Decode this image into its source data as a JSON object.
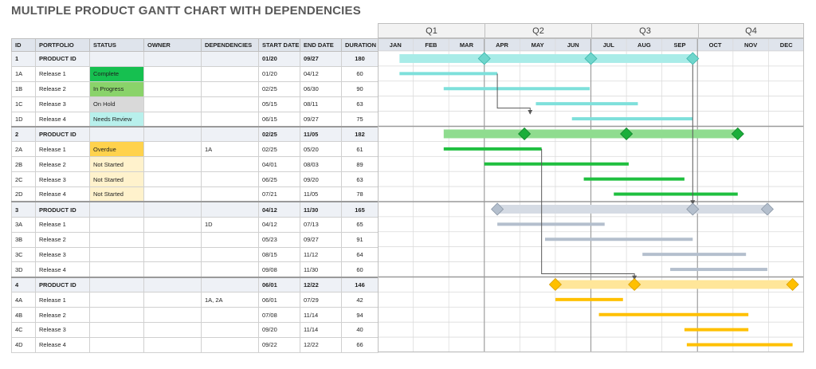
{
  "title": "MULTIPLE PRODUCT GANTT CHART WITH DEPENDENCIES",
  "quarters": [
    "Q1",
    "Q2",
    "Q3",
    "Q4"
  ],
  "months": [
    "JAN",
    "FEB",
    "MAR",
    "APR",
    "MAY",
    "JUN",
    "JUL",
    "AUG",
    "SEP",
    "OCT",
    "NOV",
    "DEC"
  ],
  "columns": {
    "id": "ID",
    "portfolio": "PORTFOLIO",
    "status": "STATUS",
    "owner": "OWNER",
    "dependencies": "DEPENDENCIES",
    "start": "START DATE",
    "end": "END DATE",
    "duration": "DURATION"
  },
  "rows": [
    {
      "id": "1",
      "portfolio": "PRODUCT ID",
      "status": "",
      "status_class": "",
      "owner": "",
      "dependencies": "",
      "start": "01/20",
      "end": "09/27",
      "duration": "180",
      "parent": true,
      "group": 0,
      "bar_start": [
        1,
        20
      ],
      "bar_end": [
        9,
        27
      ],
      "milestones": [
        [
          4,
          1
        ],
        [
          7,
          1
        ],
        [
          9,
          27
        ]
      ]
    },
    {
      "id": "1A",
      "portfolio": "Release 1",
      "status": "Complete",
      "status_class": "st-complete",
      "owner": "",
      "dependencies": "",
      "start": "01/20",
      "end": "04/12",
      "duration": "60",
      "parent": false,
      "group": 0,
      "bar_start": [
        1,
        20
      ],
      "bar_end": [
        4,
        12
      ]
    },
    {
      "id": "1B",
      "portfolio": "Release 2",
      "status": "In Progress",
      "status_class": "st-progress",
      "owner": "",
      "dependencies": "",
      "start": "02/25",
      "end": "06/30",
      "duration": "90",
      "parent": false,
      "group": 0,
      "bar_start": [
        2,
        25
      ],
      "bar_end": [
        6,
        30
      ]
    },
    {
      "id": "1C",
      "portfolio": "Release 3",
      "status": "On Hold",
      "status_class": "st-hold",
      "owner": "",
      "dependencies": "",
      "start": "05/15",
      "end": "08/11",
      "duration": "63",
      "parent": false,
      "group": 0,
      "bar_start": [
        5,
        15
      ],
      "bar_end": [
        8,
        11
      ]
    },
    {
      "id": "1D",
      "portfolio": "Release 4",
      "status": "Needs Review",
      "status_class": "st-review",
      "owner": "",
      "dependencies": "",
      "start": "06/15",
      "end": "09/27",
      "duration": "75",
      "parent": false,
      "group": 0,
      "bar_start": [
        6,
        15
      ],
      "bar_end": [
        9,
        27
      ]
    },
    {
      "id": "2",
      "portfolio": "PRODUCT ID",
      "status": "",
      "status_class": "",
      "owner": "",
      "dependencies": "",
      "start": "02/25",
      "end": "11/05",
      "duration": "182",
      "parent": true,
      "group": 1,
      "bar_start": [
        2,
        25
      ],
      "bar_end": [
        11,
        5
      ],
      "milestones": [
        [
          5,
          5
        ],
        [
          8,
          1
        ],
        [
          11,
          5
        ]
      ]
    },
    {
      "id": "2A",
      "portfolio": "Release 1",
      "status": "Overdue",
      "status_class": "st-overdue",
      "owner": "",
      "dependencies": "1A",
      "start": "02/25",
      "end": "05/20",
      "duration": "61",
      "parent": false,
      "group": 1,
      "bar_start": [
        2,
        25
      ],
      "bar_end": [
        5,
        20
      ]
    },
    {
      "id": "2B",
      "portfolio": "Release 2",
      "status": "Not Started",
      "status_class": "st-notstarted",
      "owner": "",
      "dependencies": "",
      "start": "04/01",
      "end": "08/03",
      "duration": "89",
      "parent": false,
      "group": 1,
      "bar_start": [
        4,
        1
      ],
      "bar_end": [
        8,
        3
      ]
    },
    {
      "id": "2C",
      "portfolio": "Release 3",
      "status": "Not Started",
      "status_class": "st-notstarted",
      "owner": "",
      "dependencies": "",
      "start": "06/25",
      "end": "09/20",
      "duration": "63",
      "parent": false,
      "group": 1,
      "bar_start": [
        6,
        25
      ],
      "bar_end": [
        9,
        20
      ]
    },
    {
      "id": "2D",
      "portfolio": "Release 4",
      "status": "Not Started",
      "status_class": "st-notstarted",
      "owner": "",
      "dependencies": "",
      "start": "07/21",
      "end": "11/05",
      "duration": "78",
      "parent": false,
      "group": 1,
      "bar_start": [
        7,
        21
      ],
      "bar_end": [
        11,
        5
      ]
    },
    {
      "id": "3",
      "portfolio": "PRODUCT ID",
      "status": "",
      "status_class": "",
      "owner": "",
      "dependencies": "",
      "start": "04/12",
      "end": "11/30",
      "duration": "165",
      "parent": true,
      "group": 2,
      "bar_start": [
        4,
        12
      ],
      "bar_end": [
        11,
        30
      ],
      "milestones": [
        [
          4,
          12
        ],
        [
          9,
          27
        ],
        [
          11,
          30
        ]
      ]
    },
    {
      "id": "3A",
      "portfolio": "Release 1",
      "status": "",
      "status_class": "",
      "owner": "",
      "dependencies": "1D",
      "start": "04/12",
      "end": "07/13",
      "duration": "65",
      "parent": false,
      "group": 2,
      "bar_start": [
        4,
        12
      ],
      "bar_end": [
        7,
        13
      ]
    },
    {
      "id": "3B",
      "portfolio": "Release 2",
      "status": "",
      "status_class": "",
      "owner": "",
      "dependencies": "",
      "start": "05/23",
      "end": "09/27",
      "duration": "91",
      "parent": false,
      "group": 2,
      "bar_start": [
        5,
        23
      ],
      "bar_end": [
        9,
        27
      ]
    },
    {
      "id": "3C",
      "portfolio": "Release 3",
      "status": "",
      "status_class": "",
      "owner": "",
      "dependencies": "",
      "start": "08/15",
      "end": "11/12",
      "duration": "64",
      "parent": false,
      "group": 2,
      "bar_start": [
        8,
        15
      ],
      "bar_end": [
        11,
        12
      ]
    },
    {
      "id": "3D",
      "portfolio": "Release 4",
      "status": "",
      "status_class": "",
      "owner": "",
      "dependencies": "",
      "start": "09/08",
      "end": "11/30",
      "duration": "60",
      "parent": false,
      "group": 2,
      "bar_start": [
        9,
        8
      ],
      "bar_end": [
        11,
        30
      ]
    },
    {
      "id": "4",
      "portfolio": "PRODUCT ID",
      "status": "",
      "status_class": "",
      "owner": "",
      "dependencies": "",
      "start": "06/01",
      "end": "12/22",
      "duration": "146",
      "parent": true,
      "group": 3,
      "bar_start": [
        6,
        1
      ],
      "bar_end": [
        12,
        22
      ],
      "milestones": [
        [
          6,
          1
        ],
        [
          8,
          8
        ],
        [
          12,
          22
        ]
      ]
    },
    {
      "id": "4A",
      "portfolio": "Release 1",
      "status": "",
      "status_class": "",
      "owner": "",
      "dependencies": "1A, 2A",
      "start": "06/01",
      "end": "07/29",
      "duration": "42",
      "parent": false,
      "group": 3,
      "bar_start": [
        6,
        1
      ],
      "bar_end": [
        7,
        29
      ]
    },
    {
      "id": "4B",
      "portfolio": "Release 2",
      "status": "",
      "status_class": "",
      "owner": "",
      "dependencies": "",
      "start": "07/08",
      "end": "11/14",
      "duration": "94",
      "parent": false,
      "group": 3,
      "bar_start": [
        7,
        8
      ],
      "bar_end": [
        11,
        14
      ]
    },
    {
      "id": "4C",
      "portfolio": "Release 3",
      "status": "",
      "status_class": "",
      "owner": "",
      "dependencies": "",
      "start": "09/20",
      "end": "11/14",
      "duration": "40",
      "parent": false,
      "group": 3,
      "bar_start": [
        9,
        20
      ],
      "bar_end": [
        11,
        14
      ]
    },
    {
      "id": "4D",
      "portfolio": "Release 4",
      "status": "",
      "status_class": "",
      "owner": "",
      "dependencies": "",
      "start": "09/22",
      "end": "12/22",
      "duration": "66",
      "parent": false,
      "group": 3,
      "bar_start": [
        9,
        22
      ],
      "bar_end": [
        12,
        22
      ]
    }
  ],
  "groups": [
    {
      "parent_color": "#a9ece8",
      "sub_color": "#7ee0db",
      "milestone_color": "#6fd6cc",
      "milestone_stroke": "#3fb8ad"
    },
    {
      "parent_color": "#8fdc8f",
      "sub_color": "#1fbf3f",
      "milestone_color": "#1aae3a",
      "milestone_stroke": "#12862c"
    },
    {
      "parent_color": "#d5dbe4",
      "sub_color": "#b4bfcd",
      "milestone_color": "#b4bfcd",
      "milestone_stroke": "#8d99a8"
    },
    {
      "parent_color": "#ffe699",
      "sub_color": "#ffc000",
      "milestone_color": "#ffc000",
      "milestone_stroke": "#d9a000"
    }
  ],
  "dependencies": [
    {
      "from_row": 1,
      "from_date": [
        4,
        12
      ],
      "to_row": 4,
      "to_date": [
        5,
        10
      ]
    },
    {
      "from_row": 0,
      "from_date": [
        9,
        27
      ],
      "to_row": 10,
      "to_date": [
        9,
        27
      ]
    },
    {
      "from_row": 6,
      "from_date": [
        5,
        20
      ],
      "to_row": 15,
      "to_date": [
        8,
        8
      ]
    }
  ],
  "colors": {
    "grid": "#d9d9d9",
    "quarter_line": "#9e9e9e",
    "arrow": "#595959"
  }
}
